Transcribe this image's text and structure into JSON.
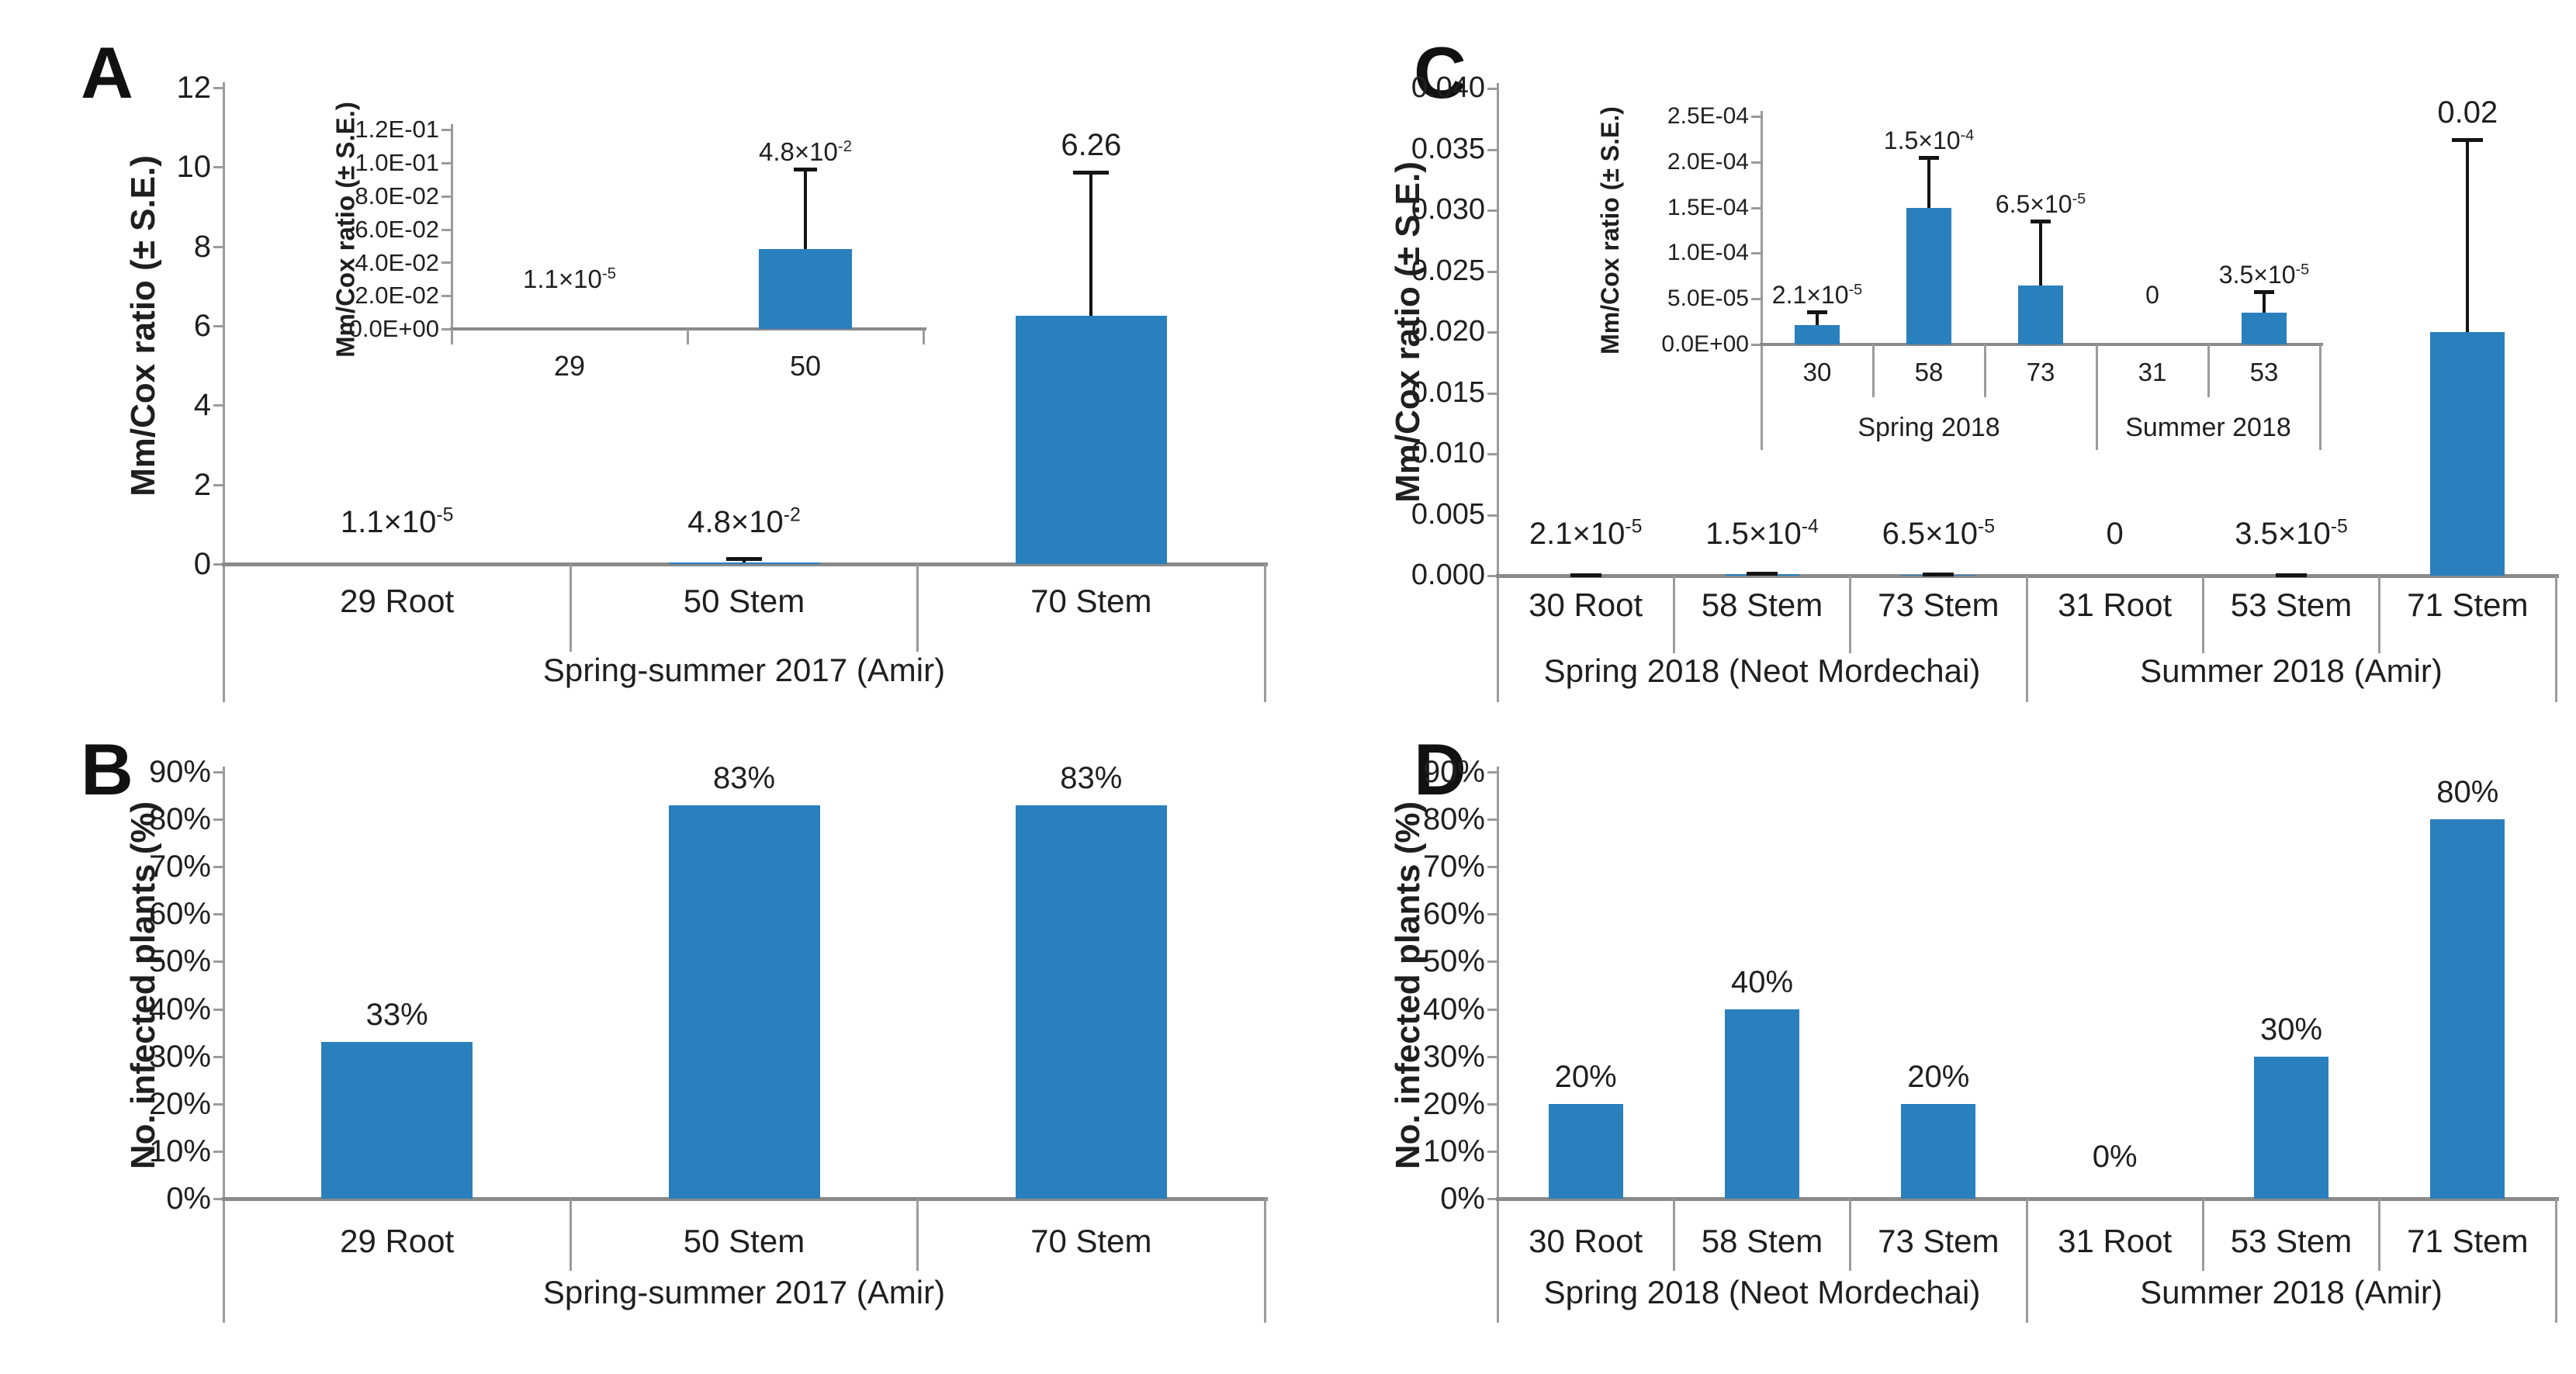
{
  "style": {
    "bar_color": "#2a7fbd",
    "axis_color": "#9b9b9b",
    "axis_strong": "#8a8a8a",
    "error_color": "#141414",
    "text_color": "#1f1f1f",
    "background": "#ffffff"
  },
  "chart_data": [
    {
      "panel": "A",
      "type": "bar",
      "ylabel": "Mm/Cox ratio (± S.E.)",
      "ylim": [
        0,
        12
      ],
      "yticks": [
        "12",
        "10",
        "8",
        "6",
        "4",
        "2",
        "0"
      ],
      "categories": [
        "29 Root",
        "50 Stem",
        "70 Stem"
      ],
      "values": [
        1.1e-05,
        0.048,
        6.26
      ],
      "labels": [
        "1.1×10^-5",
        "4.8×10^-2",
        "6.26"
      ],
      "errors_upper": [
        0,
        0.13,
        9.86
      ],
      "groups": [
        {
          "label": "Spring-summer 2017 (Amir)",
          "span": 3
        }
      ],
      "legend": "none",
      "grid": "off",
      "inset": {
        "type": "bar",
        "ylabel": "Mm/Cox ratio (± S.E.)",
        "ylim": [
          0,
          0.12
        ],
        "yticks": [
          "1.2E-01",
          "1.0E-01",
          "8.0E-02",
          "6.0E-02",
          "4.0E-02",
          "2.0E-02",
          "0.0E+00"
        ],
        "categories": [
          "29",
          "50"
        ],
        "values": [
          1.1e-05,
          0.048
        ],
        "labels": [
          "1.1×10^-5",
          "4.8×10^-2"
        ],
        "errors_upper": [
          0,
          0.096
        ]
      }
    },
    {
      "panel": "B",
      "type": "bar",
      "ylabel": "No. infected plants (%)",
      "ylim": [
        0,
        0.9
      ],
      "yticks": [
        "90%",
        "80%",
        "70%",
        "60%",
        "50%",
        "40%",
        "30%",
        "20%",
        "10%",
        "0%"
      ],
      "categories": [
        "29 Root",
        "50 Stem",
        "70 Stem"
      ],
      "values": [
        0.33,
        0.83,
        0.83
      ],
      "labels": [
        "33%",
        "83%",
        "83%"
      ],
      "errors_upper": [
        0,
        0,
        0
      ],
      "groups": [
        {
          "label": "Spring-summer 2017 (Amir)",
          "span": 3
        }
      ],
      "legend": "none",
      "grid": "off"
    },
    {
      "panel": "C",
      "type": "bar",
      "ylabel": "Mm/Cox ratio (± S.E.)",
      "ylim": [
        0,
        0.04
      ],
      "yticks": [
        "0.040",
        "0.035",
        "0.030",
        "0.025",
        "0.020",
        "0.015",
        "0.010",
        "0.005",
        "0.000"
      ],
      "categories": [
        "30 Root",
        "58 Stem",
        "73 Stem",
        "31 Root",
        "53 Stem",
        "71 Stem"
      ],
      "values": [
        2.1e-05,
        0.00015,
        6.5e-05,
        0,
        3.5e-05,
        0.02
      ],
      "labels": [
        "2.1×10^-5",
        "1.5×10^-4",
        "6.5×10^-5",
        "0",
        "3.5×10^-5",
        "0.02"
      ],
      "errors_upper": [
        3.6e-05,
        0.000205,
        0.000135,
        0,
        5.8e-05,
        0.0358
      ],
      "groups": [
        {
          "label": "Spring 2018 (Neot Mordechai)",
          "span": 3
        },
        {
          "label": "Summer 2018 (Amir)",
          "span": 3
        }
      ],
      "legend": "none",
      "grid": "off",
      "inset": {
        "type": "bar",
        "ylabel": "Mm/Cox ratio (± S.E.)",
        "ylim": [
          0,
          0.00025
        ],
        "yticks": [
          "2.5E-04",
          "2.0E-04",
          "1.5E-04",
          "1.0E-04",
          "5.0E-05",
          "0.0E+00"
        ],
        "categories": [
          "30",
          "58",
          "73",
          "31",
          "53"
        ],
        "values": [
          2.1e-05,
          0.00015,
          6.5e-05,
          0,
          3.5e-05
        ],
        "labels": [
          "2.1×10^-5",
          "1.5×10^-4",
          "6.5×10^-5",
          "0",
          "3.5×10^-5"
        ],
        "errors_upper": [
          3.6e-05,
          0.000205,
          0.000135,
          0,
          5.8e-05
        ],
        "groups": [
          {
            "label": "Spring 2018",
            "span": 3
          },
          {
            "label": "Summer 2018",
            "span": 2
          }
        ]
      }
    },
    {
      "panel": "D",
      "type": "bar",
      "ylabel": "No. infected plants (%)",
      "ylim": [
        0,
        0.9
      ],
      "yticks": [
        "90%",
        "80%",
        "70%",
        "60%",
        "50%",
        "40%",
        "30%",
        "20%",
        "10%",
        "0%"
      ],
      "categories": [
        "30 Root",
        "58 Stem",
        "73 Stem",
        "31 Root",
        "53 Stem",
        "71 Stem"
      ],
      "values": [
        0.2,
        0.4,
        0.2,
        0,
        0.3,
        0.8
      ],
      "labels": [
        "20%",
        "40%",
        "20%",
        "0%",
        "30%",
        "80%"
      ],
      "errors_upper": [
        0,
        0,
        0,
        0,
        0,
        0
      ],
      "groups": [
        {
          "label": "Spring 2018 (Neot Mordechai)",
          "span": 3
        },
        {
          "label": "Summer 2018 (Amir)",
          "span": 3
        }
      ],
      "legend": "none",
      "grid": "off"
    }
  ]
}
